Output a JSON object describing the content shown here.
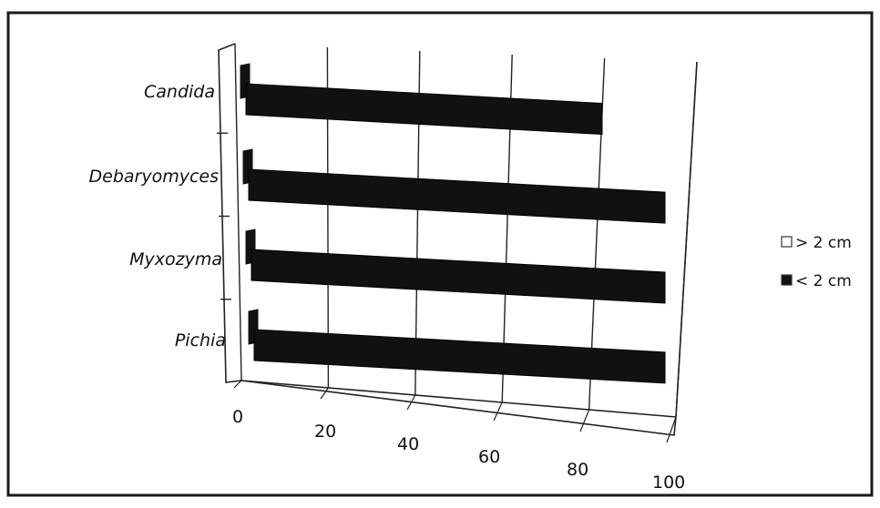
{
  "chart_data": {
    "type": "bar",
    "orientation": "horizontal",
    "style": "3d-perspective",
    "categories": [
      "Candida",
      "Debaryomyces",
      "Myxozyma",
      "Pichia"
    ],
    "series": [
      {
        "name": "> 2 cm",
        "values": [
          0,
          0,
          0,
          0
        ],
        "color": "#ffffff"
      },
      {
        "name": "< 2 cm",
        "values": [
          85,
          100,
          100,
          100
        ],
        "color": "#111111"
      }
    ],
    "x_ticks": [
      0,
      20,
      40,
      60,
      80,
      100
    ],
    "xlim": [
      0,
      100
    ],
    "title": "",
    "xlabel": "",
    "ylabel": "",
    "grid": true,
    "legend_position": "right"
  }
}
